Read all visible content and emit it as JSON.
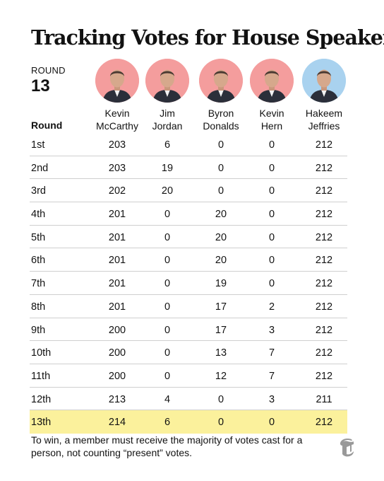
{
  "title": "Tracking Votes for House Speaker",
  "round_label": "ROUND",
  "round_number": "13",
  "candidates": [
    {
      "first": "Kevin",
      "last": "McCarthy",
      "party_color": "#f49d9d"
    },
    {
      "first": "Jim",
      "last": "Jordan",
      "party_color": "#f49d9d"
    },
    {
      "first": "Byron",
      "last": "Donalds",
      "party_color": "#f49d9d"
    },
    {
      "first": "Kevin",
      "last": "Hern",
      "party_color": "#f49d9d"
    },
    {
      "first": "Hakeem",
      "last": "Jeffries",
      "party_color": "#a9d2ef"
    }
  ],
  "highlight_color": "#fbf19c",
  "chart_data": {
    "type": "table",
    "title": "Tracking Votes for House Speaker",
    "row_header": "Round",
    "columns": [
      "Kevin McCarthy",
      "Jim Jordan",
      "Byron Donalds",
      "Kevin Hern",
      "Hakeem Jeffries"
    ],
    "rows": [
      {
        "round": "1st",
        "values": [
          "203",
          "6",
          "0",
          "0",
          "212"
        ]
      },
      {
        "round": "2nd",
        "values": [
          "203",
          "19",
          "0",
          "0",
          "212"
        ]
      },
      {
        "round": "3rd",
        "values": [
          "202",
          "20",
          "0",
          "0",
          "212"
        ]
      },
      {
        "round": "4th",
        "values": [
          "201",
          "0",
          "20",
          "0",
          "212"
        ]
      },
      {
        "round": "5th",
        "values": [
          "201",
          "0",
          "20",
          "0",
          "212"
        ]
      },
      {
        "round": "6th",
        "values": [
          "201",
          "0",
          "20",
          "0",
          "212"
        ]
      },
      {
        "round": "7th",
        "values": [
          "201",
          "0",
          "19",
          "0",
          "212"
        ]
      },
      {
        "round": "8th",
        "values": [
          "201",
          "0",
          "17",
          "2",
          "212"
        ]
      },
      {
        "round": "9th",
        "values": [
          "200",
          "0",
          "17",
          "3",
          "212"
        ]
      },
      {
        "round": "10th",
        "values": [
          "200",
          "0",
          "13",
          "7",
          "212"
        ]
      },
      {
        "round": "11th",
        "values": [
          "200",
          "0",
          "12",
          "7",
          "212"
        ]
      },
      {
        "round": "12th",
        "values": [
          "213",
          "4",
          "0",
          "3",
          "211"
        ]
      },
      {
        "round": "13th",
        "values": [
          "214",
          "6",
          "0",
          "0",
          "212"
        ],
        "highlighted": true
      }
    ]
  },
  "note": "To win, a member must receive the majority of votes cast for a person, not counting “present” votes.",
  "logo_icon": "nyt-t-logo-icon"
}
